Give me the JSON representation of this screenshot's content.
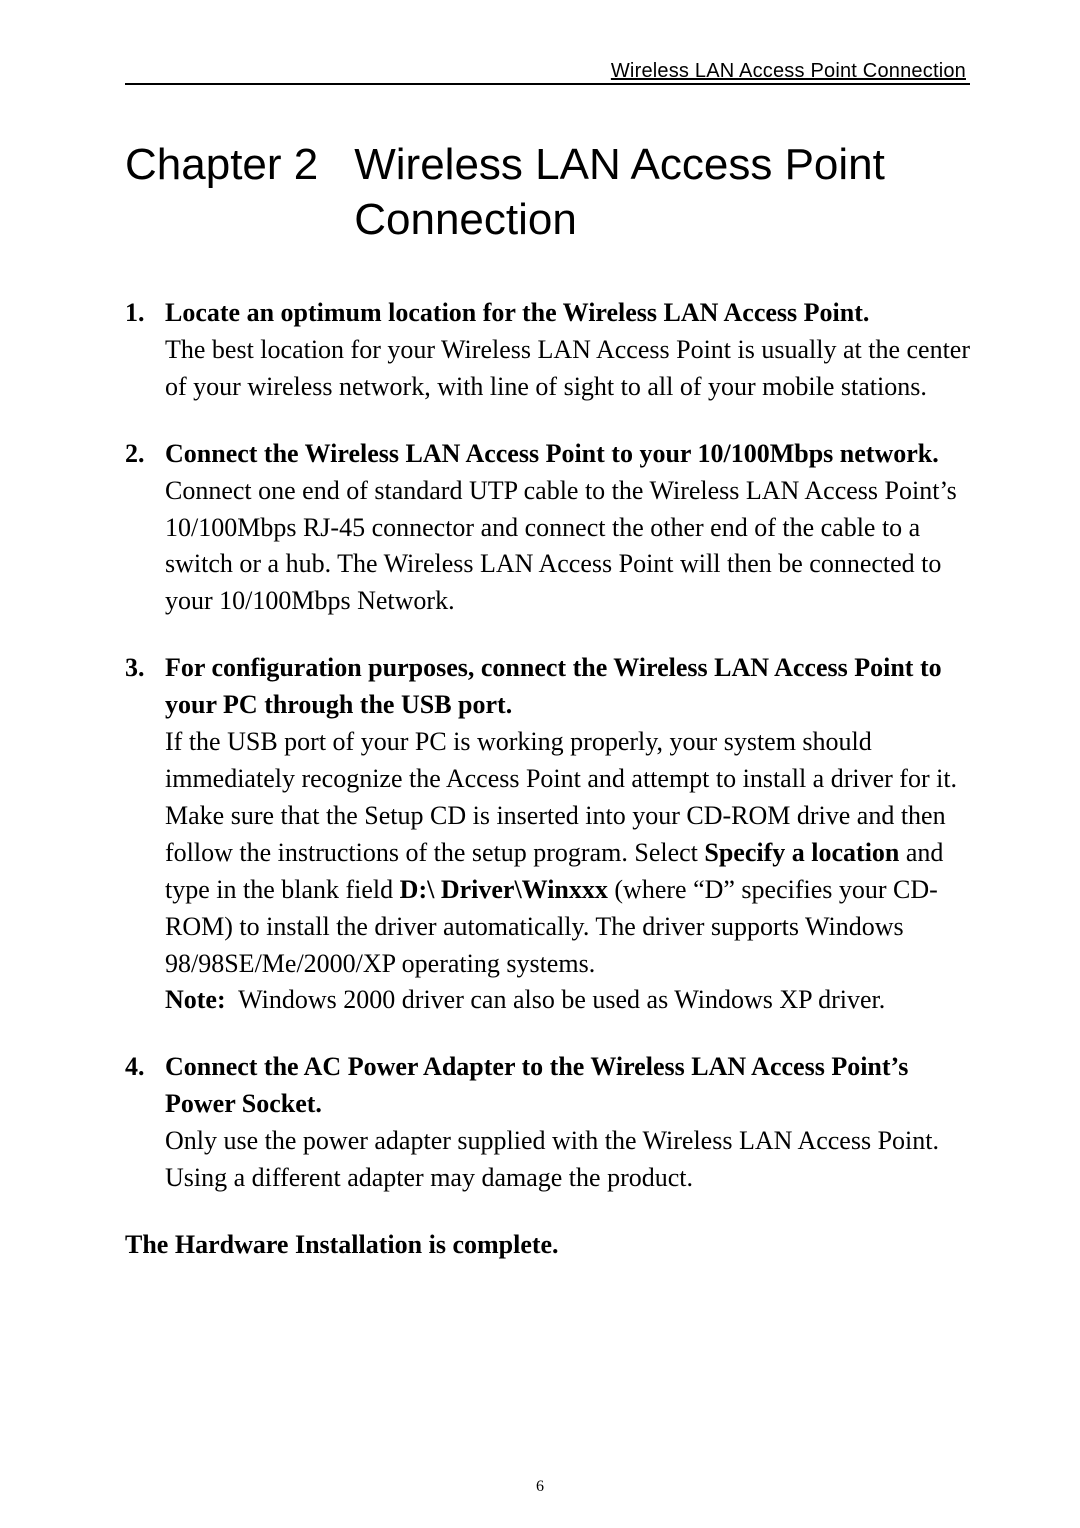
{
  "colors": {
    "text": "#000000",
    "background": "#ffffff",
    "rule": "#000000"
  },
  "fonts": {
    "body_family": "Times New Roman",
    "heading_family": "Arial",
    "body_size_pt": 19,
    "heading_size_pt": 33,
    "running_head_size_pt": 15
  },
  "running_head": "Wireless LAN Access Point Connection",
  "chapter": {
    "label": "Chapter 2",
    "title": "Wireless LAN Access Point Connection"
  },
  "steps": [
    {
      "title": "Locate an optimum location for the Wireless LAN Access Point.",
      "body_html": "The best location for your Wireless LAN Access Point is usually at the center of your wireless network, with line of sight to all of your mobile stations."
    },
    {
      "title": "Connect the Wireless LAN Access Point to your 10/100Mbps network.",
      "body_html": "Connect one end of standard UTP cable to the Wireless LAN Access Point’s 10/100Mbps RJ-45 connector and connect the other end of the cable to a switch or a hub. The Wireless LAN Access Point will then be connected to your 10/100Mbps Network."
    },
    {
      "title": "For configuration purposes, connect the Wireless LAN Access Point to your PC through the USB port.",
      "body_html": "If the USB port of your PC is working properly, your system should immediately recognize the Access Point and attempt to install a driver for it. Make sure that the Setup CD is inserted into your CD-ROM drive and then follow the instructions of the setup program. Select <span class=\"bold\">Specify a location</span> and type in the blank field <span class=\"bold\">D:\\ Driver\\Winxxx</span> (where “D” specifies your CD-ROM) to install the driver automatically. The driver supports Windows 98/98SE/Me/2000/XP operating systems.<br><span class=\"bold\">Note:</span>&nbsp; Windows 2000 driver can also be used as Windows XP driver."
    },
    {
      "title": "Connect the AC Power Adapter to the Wireless LAN Access Point’s Power Socket.",
      "body_html": "Only use the power adapter supplied with the Wireless LAN Access Point. Using a different adapter may damage the product."
    }
  ],
  "closing": "The Hardware Installation is complete.",
  "page_number": "6"
}
